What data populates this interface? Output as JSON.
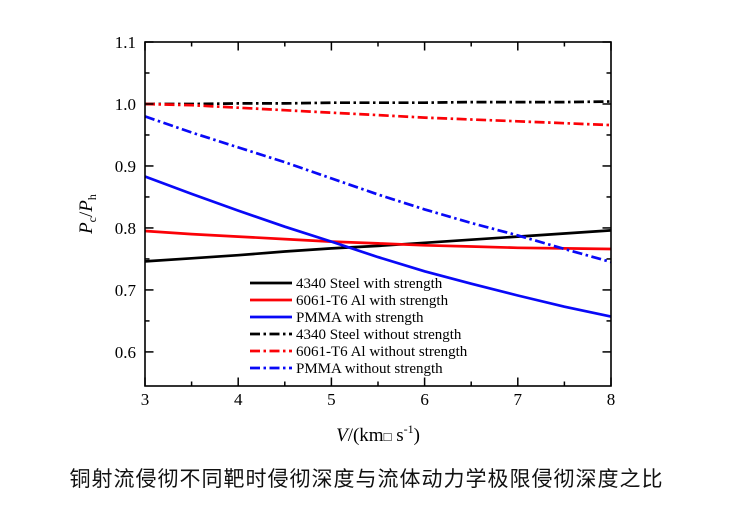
{
  "caption": "铜射流侵彻不同靶时侵彻深度与流体动力学极限侵彻深度之比",
  "colors": {
    "black": "#000000",
    "red": "#fb0207",
    "blue": "#0909f7",
    "axis": "#000000",
    "text": "#000000"
  },
  "axes": {
    "x_title_parts": {
      "var": "V",
      "open": "/(km",
      "dot": "□",
      "unit": " s",
      "sup": "-1",
      "close": ")"
    },
    "y_title_parts": {
      "p1": "P",
      "sub1": "c",
      "slash": "/",
      "p2": "P",
      "sub2": "h"
    },
    "x_tick_labels": [
      "3",
      "4",
      "5",
      "6",
      "7",
      "8"
    ],
    "y_tick_labels": [
      "0.6",
      "0.7",
      "0.8",
      "0.9",
      "1.0",
      "1.1"
    ]
  },
  "chart_data": {
    "type": "line",
    "title": "",
    "xlabel": "V/(km□ s^-1)",
    "ylabel": "Pc/Ph",
    "xlim": [
      3,
      8
    ],
    "ylim": [
      0.545,
      1.1
    ],
    "grid": false,
    "legend_position": "inside bottom-left",
    "x_major_ticks": [
      3,
      4,
      5,
      6,
      7,
      8
    ],
    "x_minor_ticks": [
      3.5,
      4.5,
      5.5,
      6.5,
      7.5
    ],
    "y_major_ticks": [
      0.6,
      0.7,
      0.8,
      0.9,
      1.0,
      1.1
    ],
    "y_minor_ticks": [
      0.65,
      0.75,
      0.85,
      0.95,
      1.05
    ],
    "x": [
      3,
      3.5,
      4,
      4.5,
      5,
      5.5,
      6,
      6.5,
      7,
      7.5,
      8
    ],
    "series": [
      {
        "name": "4340 Steel with strength",
        "color": "#000000",
        "style": "solid",
        "values": [
          0.746,
          0.751,
          0.756,
          0.762,
          0.767,
          0.771,
          0.776,
          0.781,
          0.786,
          0.791,
          0.796
        ]
      },
      {
        "name": "6061-T6 Al with strength",
        "color": "#fb0207",
        "style": "solid",
        "values": [
          0.795,
          0.79,
          0.786,
          0.782,
          0.778,
          0.775,
          0.772,
          0.77,
          0.768,
          0.767,
          0.766
        ]
      },
      {
        "name": "PMMA with strength",
        "color": "#0909f7",
        "style": "solid",
        "values": [
          0.883,
          0.855,
          0.828,
          0.802,
          0.778,
          0.753,
          0.73,
          0.71,
          0.691,
          0.673,
          0.657
        ]
      },
      {
        "name": "4340 Steel without strength",
        "color": "#000000",
        "style": "dashdot",
        "values": [
          1.0,
          1.0,
          1.001,
          1.001,
          1.002,
          1.002,
          1.002,
          1.003,
          1.003,
          1.003,
          1.004
        ]
      },
      {
        "name": "6061-T6 Al without strength",
        "color": "#fb0207",
        "style": "dashdot",
        "values": [
          1.0,
          0.998,
          0.994,
          0.99,
          0.986,
          0.982,
          0.978,
          0.975,
          0.972,
          0.969,
          0.966
        ]
      },
      {
        "name": "PMMA without strength",
        "color": "#0909f7",
        "style": "dashdot",
        "values": [
          0.98,
          0.954,
          0.93,
          0.906,
          0.88,
          0.854,
          0.83,
          0.808,
          0.788,
          0.766,
          0.745
        ]
      }
    ]
  }
}
